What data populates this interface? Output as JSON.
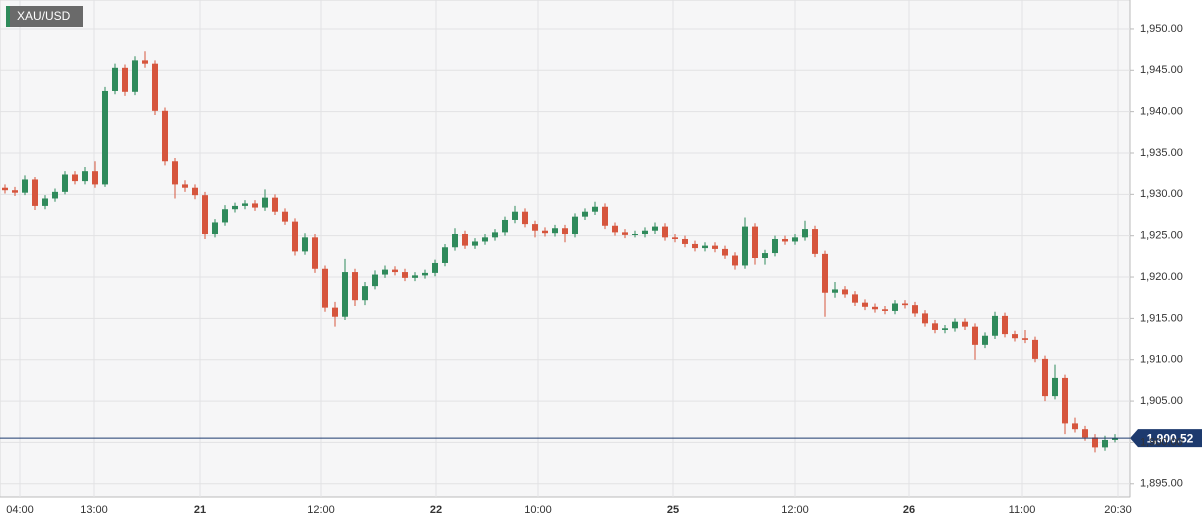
{
  "chart_data": {
    "type": "candlestick",
    "title": "XAU/USD",
    "ohlc": [
      [
        1930.8,
        1931.2,
        1930.1,
        1930.5
      ],
      [
        1930.5,
        1930.9,
        1929.8,
        1930.2
      ],
      [
        1930.2,
        1932.3,
        1929.9,
        1931.8
      ],
      [
        1931.8,
        1932.1,
        1928.1,
        1928.6
      ],
      [
        1928.6,
        1929.9,
        1928.2,
        1929.5
      ],
      [
        1929.5,
        1930.7,
        1929.1,
        1930.3
      ],
      [
        1930.3,
        1932.8,
        1930.0,
        1932.4
      ],
      [
        1932.4,
        1932.8,
        1931.2,
        1931.6
      ],
      [
        1931.6,
        1933.3,
        1931.2,
        1932.8
      ],
      [
        1932.8,
        1934.0,
        1930.8,
        1931.2
      ],
      [
        1931.2,
        1943.0,
        1930.9,
        1942.5
      ],
      [
        1942.5,
        1945.8,
        1942.1,
        1945.3
      ],
      [
        1945.3,
        1945.7,
        1941.9,
        1942.4
      ],
      [
        1942.4,
        1946.7,
        1942.0,
        1946.2
      ],
      [
        1946.2,
        1947.3,
        1945.3,
        1945.8
      ],
      [
        1945.8,
        1946.2,
        1939.6,
        1940.1
      ],
      [
        1940.1,
        1940.5,
        1933.5,
        1934.0
      ],
      [
        1934.0,
        1934.4,
        1929.5,
        1931.2
      ],
      [
        1931.2,
        1931.7,
        1930.3,
        1930.8
      ],
      [
        1930.8,
        1931.2,
        1929.4,
        1929.9
      ],
      [
        1929.9,
        1930.3,
        1924.6,
        1925.2
      ],
      [
        1925.2,
        1927.0,
        1924.8,
        1926.6
      ],
      [
        1926.6,
        1928.7,
        1926.2,
        1928.2
      ],
      [
        1928.2,
        1929.0,
        1927.8,
        1928.6
      ],
      [
        1928.6,
        1929.3,
        1928.2,
        1928.9
      ],
      [
        1928.9,
        1929.3,
        1928.0,
        1928.4
      ],
      [
        1928.4,
        1930.6,
        1928.0,
        1929.6
      ],
      [
        1929.6,
        1930.0,
        1927.5,
        1927.9
      ],
      [
        1927.9,
        1928.3,
        1926.3,
        1926.7
      ],
      [
        1926.7,
        1927.1,
        1922.6,
        1923.1
      ],
      [
        1923.1,
        1925.3,
        1922.7,
        1924.8
      ],
      [
        1924.8,
        1925.2,
        1920.5,
        1921.0
      ],
      [
        1921.0,
        1921.4,
        1915.8,
        1916.3
      ],
      [
        1916.3,
        1917.0,
        1914.0,
        1915.2
      ],
      [
        1915.2,
        1922.2,
        1914.8,
        1920.6
      ],
      [
        1920.6,
        1921.0,
        1916.5,
        1917.2
      ],
      [
        1917.2,
        1919.4,
        1916.6,
        1918.9
      ],
      [
        1918.9,
        1920.8,
        1918.5,
        1920.3
      ],
      [
        1920.3,
        1921.4,
        1919.9,
        1920.9
      ],
      [
        1920.9,
        1921.3,
        1920.2,
        1920.6
      ],
      [
        1920.6,
        1921.0,
        1919.5,
        1919.9
      ],
      [
        1919.9,
        1920.6,
        1919.5,
        1920.2
      ],
      [
        1920.2,
        1920.9,
        1919.8,
        1920.5
      ],
      [
        1920.5,
        1922.1,
        1920.1,
        1921.7
      ],
      [
        1921.7,
        1924.0,
        1921.3,
        1923.6
      ],
      [
        1923.6,
        1925.9,
        1923.2,
        1925.2
      ],
      [
        1925.2,
        1925.6,
        1923.4,
        1923.8
      ],
      [
        1923.8,
        1924.7,
        1923.4,
        1924.3
      ],
      [
        1924.3,
        1925.2,
        1923.9,
        1924.8
      ],
      [
        1924.8,
        1925.8,
        1924.4,
        1925.4
      ],
      [
        1925.4,
        1927.3,
        1925.0,
        1926.9
      ],
      [
        1926.9,
        1928.6,
        1926.5,
        1927.9
      ],
      [
        1927.9,
        1928.3,
        1926.0,
        1926.4
      ],
      [
        1926.4,
        1926.8,
        1924.8,
        1925.6
      ],
      [
        1925.6,
        1926.0,
        1924.9,
        1925.3
      ],
      [
        1925.3,
        1926.3,
        1924.9,
        1925.9
      ],
      [
        1925.9,
        1926.3,
        1924.2,
        1925.2
      ],
      [
        1925.2,
        1927.7,
        1924.8,
        1927.3
      ],
      [
        1927.3,
        1928.3,
        1926.9,
        1927.9
      ],
      [
        1927.9,
        1929.1,
        1927.5,
        1928.5
      ],
      [
        1928.5,
        1928.9,
        1925.8,
        1926.2
      ],
      [
        1926.2,
        1926.6,
        1925.0,
        1925.4
      ],
      [
        1925.4,
        1925.8,
        1924.7,
        1925.1
      ],
      [
        1925.1,
        1925.6,
        1924.8,
        1925.2
      ],
      [
        1925.2,
        1926.0,
        1924.8,
        1925.6
      ],
      [
        1925.6,
        1926.6,
        1925.2,
        1926.1
      ],
      [
        1926.1,
        1926.5,
        1924.4,
        1924.8
      ],
      [
        1924.8,
        1925.2,
        1924.2,
        1924.6
      ],
      [
        1924.6,
        1925.0,
        1923.6,
        1924.0
      ],
      [
        1924.0,
        1924.4,
        1923.1,
        1923.5
      ],
      [
        1923.5,
        1924.2,
        1923.1,
        1923.8
      ],
      [
        1923.8,
        1924.2,
        1923.0,
        1923.4
      ],
      [
        1923.4,
        1923.8,
        1922.2,
        1922.6
      ],
      [
        1922.6,
        1923.0,
        1920.9,
        1921.4
      ],
      [
        1921.4,
        1927.2,
        1921.0,
        1926.1
      ],
      [
        1926.1,
        1926.5,
        1921.5,
        1922.3
      ],
      [
        1922.3,
        1923.3,
        1921.5,
        1922.9
      ],
      [
        1922.9,
        1925.0,
        1922.5,
        1924.6
      ],
      [
        1924.6,
        1925.0,
        1923.9,
        1924.3
      ],
      [
        1924.3,
        1925.2,
        1923.9,
        1924.8
      ],
      [
        1924.8,
        1926.8,
        1924.4,
        1925.8
      ],
      [
        1925.8,
        1926.2,
        1922.4,
        1922.8
      ],
      [
        1922.8,
        1923.2,
        1915.2,
        1918.1
      ],
      [
        1918.1,
        1919.4,
        1917.5,
        1918.5
      ],
      [
        1918.5,
        1918.9,
        1917.5,
        1917.9
      ],
      [
        1917.9,
        1918.3,
        1916.5,
        1916.9
      ],
      [
        1916.9,
        1917.3,
        1916.0,
        1916.4
      ],
      [
        1916.4,
        1916.8,
        1915.7,
        1916.1
      ],
      [
        1916.1,
        1916.5,
        1915.5,
        1915.9
      ],
      [
        1915.9,
        1917.2,
        1915.5,
        1916.8
      ],
      [
        1916.8,
        1917.2,
        1916.2,
        1916.6
      ],
      [
        1916.6,
        1917.0,
        1915.2,
        1915.6
      ],
      [
        1915.6,
        1916.0,
        1914.0,
        1914.4
      ],
      [
        1914.4,
        1914.8,
        1913.2,
        1913.6
      ],
      [
        1913.6,
        1914.2,
        1913.2,
        1913.8
      ],
      [
        1913.8,
        1915.0,
        1913.4,
        1914.6
      ],
      [
        1914.6,
        1915.0,
        1913.6,
        1914.0
      ],
      [
        1914.0,
        1914.4,
        1910.0,
        1911.8
      ],
      [
        1911.8,
        1913.3,
        1911.4,
        1912.9
      ],
      [
        1912.9,
        1915.8,
        1912.5,
        1915.3
      ],
      [
        1915.3,
        1915.7,
        1912.7,
        1913.1
      ],
      [
        1913.1,
        1913.5,
        1912.2,
        1912.6
      ],
      [
        1912.6,
        1913.6,
        1912.0,
        1912.4
      ],
      [
        1912.4,
        1912.8,
        1909.7,
        1910.1
      ],
      [
        1910.1,
        1910.5,
        1905.0,
        1905.6
      ],
      [
        1905.6,
        1909.4,
        1905.2,
        1907.8
      ],
      [
        1907.8,
        1908.2,
        1901.0,
        1902.3
      ],
      [
        1902.3,
        1903.0,
        1901.2,
        1901.6
      ],
      [
        1901.6,
        1902.0,
        1900.2,
        1900.6
      ],
      [
        1900.6,
        1901.0,
        1898.8,
        1899.4
      ],
      [
        1899.4,
        1900.8,
        1899.0,
        1900.3
      ],
      [
        1900.3,
        1901.0,
        1900.0,
        1900.5
      ]
    ],
    "up_color": "#2f8a5b",
    "down_color": "#d6553d",
    "xlim": [
      -0.5,
      112.5
    ],
    "xticks": [
      {
        "value": 1.5,
        "label": "04:00"
      },
      {
        "value": 8.9,
        "label": "13:00"
      },
      {
        "value": 19.5,
        "label": "21"
      },
      {
        "value": 31.6,
        "label": "12:00"
      },
      {
        "value": 43.1,
        "label": "22"
      },
      {
        "value": 53.3,
        "label": "10:00"
      },
      {
        "value": 66.8,
        "label": "25"
      },
      {
        "value": 79,
        "label": "12:00"
      },
      {
        "value": 90.4,
        "label": "26"
      },
      {
        "value": 101.7,
        "label": "11:00"
      },
      {
        "value": 111.3,
        "label": "20:30"
      }
    ],
    "ylim": [
      1893.4,
      1953.5
    ],
    "yticks": [
      {
        "value": 1895,
        "label": "1,895.00"
      },
      {
        "value": 1900,
        "label": "1,900.00"
      },
      {
        "value": 1905,
        "label": "1,905.00"
      },
      {
        "value": 1910,
        "label": "1,910.00"
      },
      {
        "value": 1915,
        "label": "1,915.00"
      },
      {
        "value": 1920,
        "label": "1,920.00"
      },
      {
        "value": 1925,
        "label": "1,925.00"
      },
      {
        "value": 1930,
        "label": "1,930.00"
      },
      {
        "value": 1935,
        "label": "1,935.00"
      },
      {
        "value": 1940,
        "label": "1,940.00"
      },
      {
        "value": 1945,
        "label": "1,945.00"
      },
      {
        "value": 1950,
        "label": "1,950.00"
      }
    ],
    "grid": true,
    "current_price": {
      "value": 1900.52,
      "label": "1,900.52"
    },
    "current_color": "#1d3a6e"
  }
}
